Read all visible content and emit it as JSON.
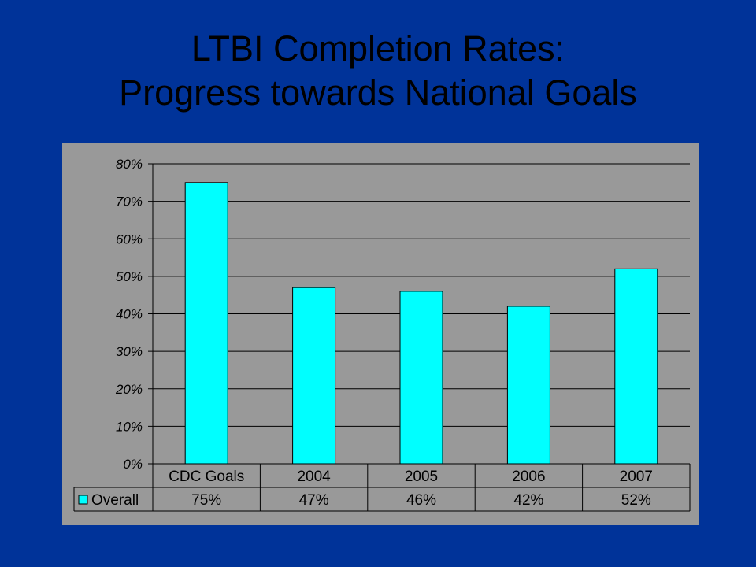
{
  "slide": {
    "title_line1": "LTBI Completion Rates:",
    "title_line2": "Progress towards National Goals"
  },
  "colors": {
    "background": "#003399",
    "plot_area": "#999999",
    "bar_fill": "#00FFFF",
    "bar_stroke": "#000000",
    "title_text": "#000000"
  },
  "chart_data": {
    "type": "bar",
    "categories": [
      "CDC Goals",
      "2004",
      "2005",
      "2006",
      "2007"
    ],
    "series": [
      {
        "name": "Overall",
        "values": [
          75,
          47,
          46,
          42,
          52
        ]
      }
    ],
    "ylim": [
      0,
      80
    ],
    "yticks": [
      0,
      10,
      20,
      30,
      40,
      50,
      60,
      70,
      80
    ],
    "ytick_labels": [
      "0%",
      "10%",
      "20%",
      "30%",
      "40%",
      "50%",
      "60%",
      "70%",
      "80%"
    ],
    "data_table": {
      "row_label": "Overall",
      "values": [
        "75%",
        "47%",
        "46%",
        "42%",
        "52%"
      ]
    },
    "grid": true,
    "legend": "in data table"
  }
}
